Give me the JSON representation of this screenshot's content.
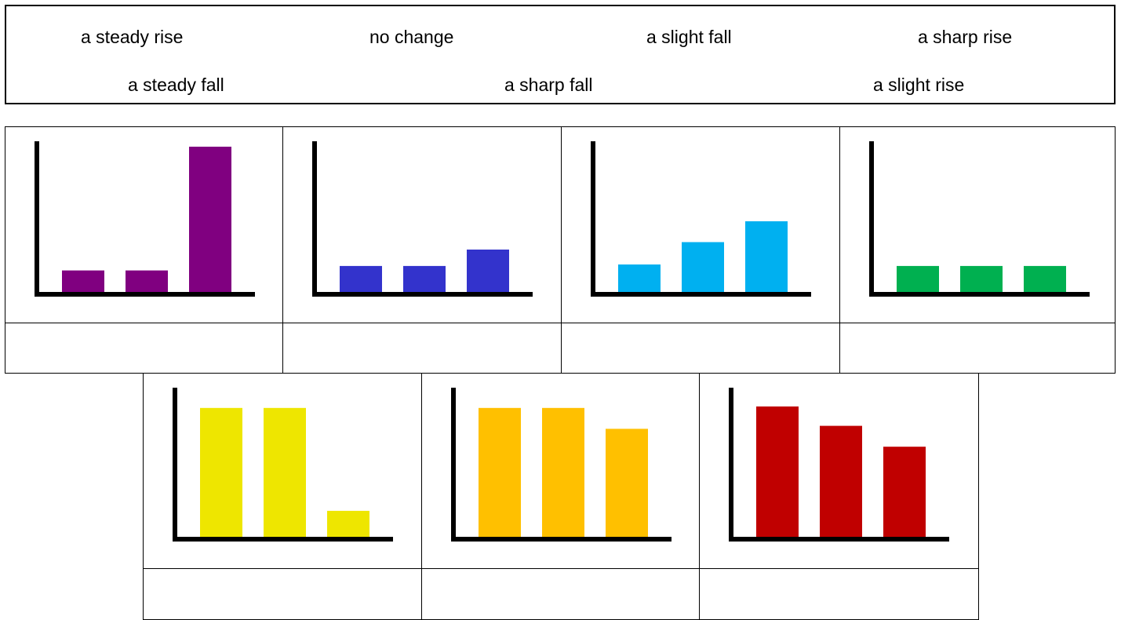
{
  "word_bank": {
    "row1": [
      "a steady rise",
      "no change",
      "a slight fall",
      "a sharp rise"
    ],
    "row2": [
      "a steady fall",
      "a sharp fall",
      "a slight rise"
    ]
  },
  "chart_data": [
    {
      "type": "bar",
      "categories": [
        "",
        "",
        ""
      ],
      "values": [
        1.6,
        1.6,
        9.9
      ],
      "color": "#800080",
      "answer": ""
    },
    {
      "type": "bar",
      "categories": [
        "",
        "",
        ""
      ],
      "values": [
        1.9,
        1.9,
        3.0
      ],
      "color": "#3333CC",
      "answer": ""
    },
    {
      "type": "bar",
      "categories": [
        "",
        "",
        ""
      ],
      "values": [
        2.0,
        3.5,
        4.9
      ],
      "color": "#00B0F0",
      "answer": ""
    },
    {
      "type": "bar",
      "categories": [
        "",
        "",
        ""
      ],
      "values": [
        1.9,
        1.9,
        1.9
      ],
      "color": "#00B050",
      "answer": ""
    },
    {
      "type": "bar",
      "categories": [
        "",
        "",
        ""
      ],
      "values": [
        8.8,
        8.8,
        1.9
      ],
      "color": "#EEE600",
      "answer": ""
    },
    {
      "type": "bar",
      "categories": [
        "",
        "",
        ""
      ],
      "values": [
        8.8,
        8.8,
        7.4
      ],
      "color": "#FFC000",
      "answer": ""
    },
    {
      "type": "bar",
      "categories": [
        "",
        "",
        ""
      ],
      "values": [
        8.9,
        7.6,
        6.2
      ],
      "color": "#C00000",
      "answer": ""
    }
  ]
}
